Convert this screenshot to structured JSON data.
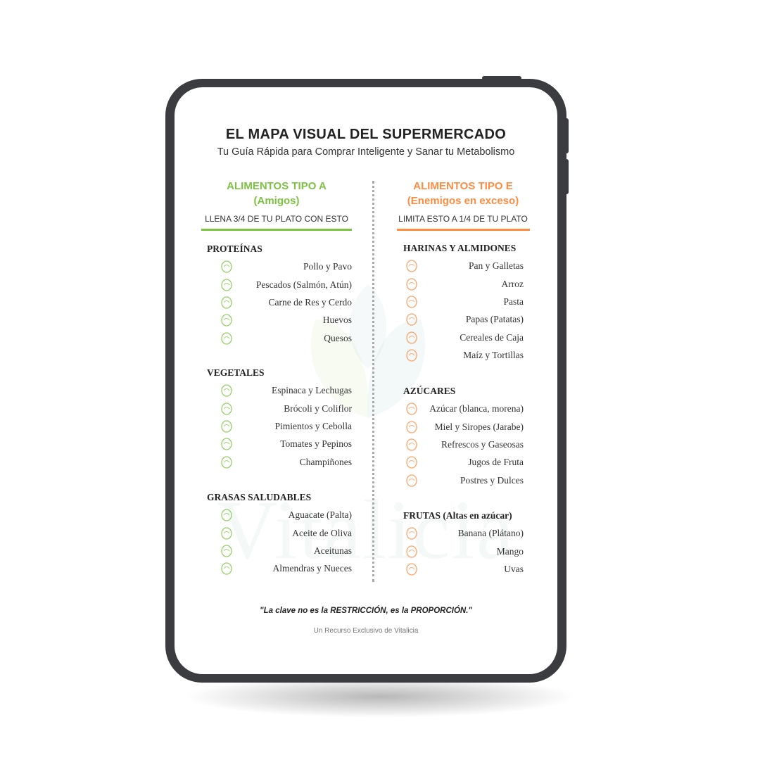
{
  "header": {
    "title": "EL MAPA VISUAL DEL SUPERMERCADO",
    "subtitle": "Tu Guía Rápida para Comprar Inteligente y Sanar tu Metabolismo"
  },
  "watermark": "Vitalicia",
  "colors": {
    "green": "#7dc242",
    "orange": "#ff8c42",
    "frame": "#3b3c40"
  },
  "left": {
    "heading": "ALIMENTOS TIPO A",
    "heading2": "(Amigos)",
    "instruction": "LLENA 3/4 DE TU PLATO CON ESTO",
    "sections": [
      {
        "title": "PROTEÍNAS",
        "items": [
          {
            "label": "Pollo y Pavo",
            "icon": "chicken-leg-icon"
          },
          {
            "label": "Pescados (Salmón, Atún)",
            "icon": "fish-icon"
          },
          {
            "label": "Carne de Res y Cerdo",
            "icon": "meat-icon"
          },
          {
            "label": "Huevos",
            "icon": "egg-icon"
          },
          {
            "label": "Quesos",
            "icon": "cheese-icon"
          }
        ]
      },
      {
        "title": "VEGETALES",
        "items": [
          {
            "label": "Espinaca y Lechugas",
            "icon": "lettuce-icon"
          },
          {
            "label": "Brócoli y Coliflor",
            "icon": "broccoli-icon"
          },
          {
            "label": "Pimientos y Cebolla",
            "icon": "pepper-onion-icon"
          },
          {
            "label": "Tomates y Pepinos",
            "icon": "tomato-icon"
          },
          {
            "label": "Champiñones",
            "icon": "mushroom-icon"
          }
        ]
      },
      {
        "title": "GRASAS SALUDABLES",
        "items": [
          {
            "label": "Aguacate (Palta)",
            "icon": "avocado-icon"
          },
          {
            "label": "Aceite de Oliva",
            "icon": "olive-oil-icon"
          },
          {
            "label": "Aceitunas",
            "icon": "olive-icon"
          },
          {
            "label": "Almendras y Nueces",
            "icon": "nuts-icon"
          }
        ]
      }
    ]
  },
  "right": {
    "heading": "ALIMENTOS TIPO E",
    "heading2": "(Enemigos en exceso)",
    "instruction": "LIMITA ESTO A 1/4 DE TU PLATO",
    "sections": [
      {
        "title": "HARINAS Y ALMIDONES",
        "items": [
          {
            "label": "Pan y Galletas",
            "icon": "bread-icon"
          },
          {
            "label": "Arroz",
            "icon": "rice-bowl-icon"
          },
          {
            "label": "Pasta",
            "icon": "pasta-icon"
          },
          {
            "label": "Papas (Patatas)",
            "icon": "potato-icon"
          },
          {
            "label": "Cereales de Caja",
            "icon": "cereal-box-icon"
          },
          {
            "label": "Maíz y Tortillas",
            "icon": "tortilla-icon"
          }
        ]
      },
      {
        "title": "AZÚCARES",
        "items": [
          {
            "label": "Azúcar (blanca, morena)",
            "icon": "sugar-jar-icon"
          },
          {
            "label": "Miel y Siropes (Jarabe)",
            "icon": "honey-icon"
          },
          {
            "label": "Refrescos y Gaseosas",
            "icon": "soda-icon"
          },
          {
            "label": "Jugos de Fruta",
            "icon": "juice-box-icon"
          },
          {
            "label": "Postres y Dulces",
            "icon": "cupcake-icon"
          }
        ]
      },
      {
        "title": "FRUTAS (Altas en azúcar)",
        "items": [
          {
            "label": "Banana (Plátano)",
            "icon": "banana-icon"
          },
          {
            "label": "Mango",
            "icon": "mango-icon"
          },
          {
            "label": "Uvas",
            "icon": "grapes-icon"
          }
        ]
      }
    ]
  },
  "footer": {
    "quote": "\"La clave no es la RESTRICCIÓN, es la PROPORCIÓN.\"",
    "credit": "Un Recurso Exclusivo de Vitalicia"
  }
}
